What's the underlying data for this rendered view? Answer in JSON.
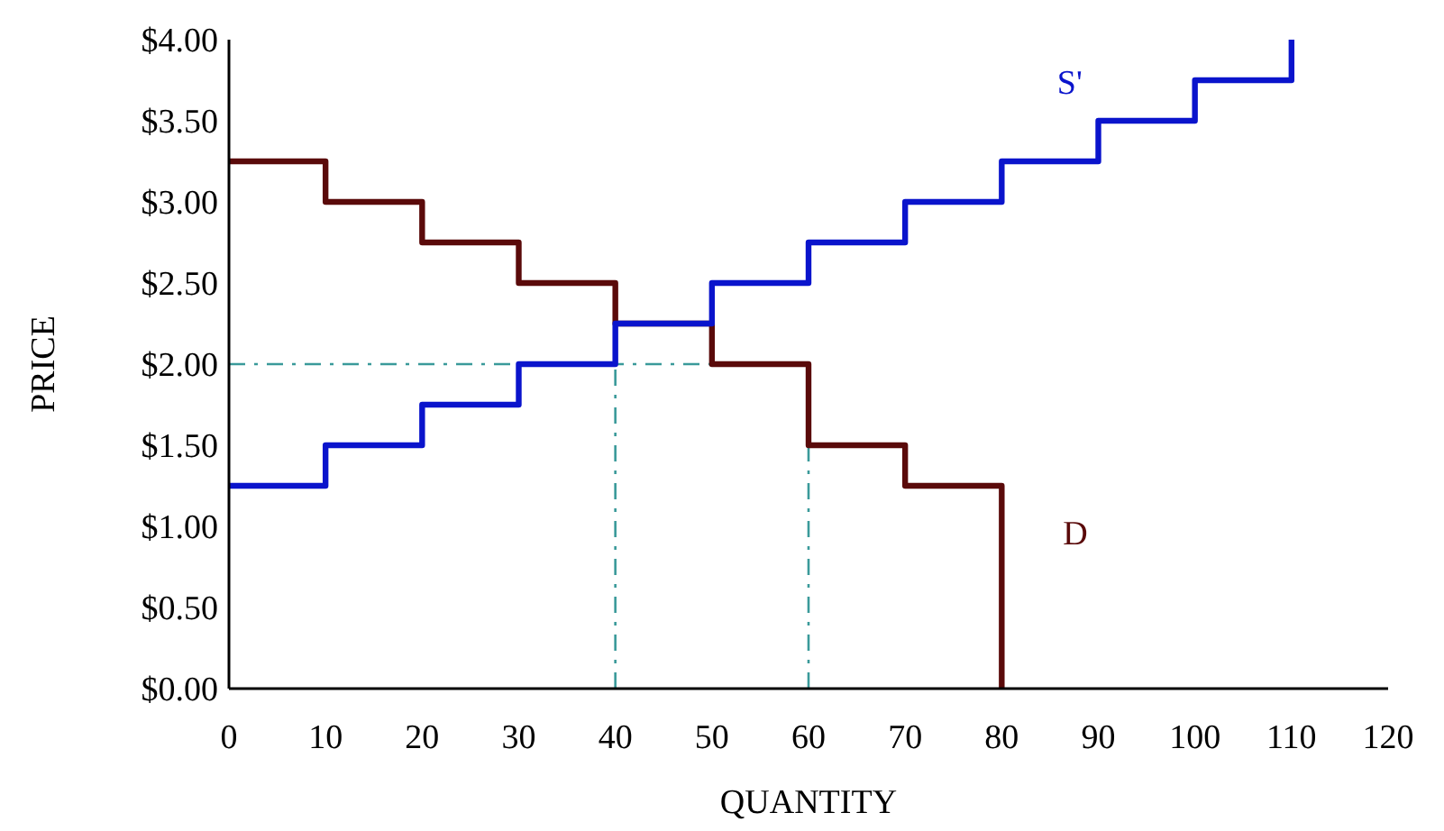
{
  "chart_data": {
    "type": "step",
    "xlabel": "QUANTITY",
    "ylabel": "PRICE",
    "xlim": [
      0,
      120
    ],
    "xticks": [
      0,
      10,
      20,
      30,
      40,
      50,
      60,
      70,
      80,
      90,
      100,
      110,
      120
    ],
    "ylim": [
      0,
      4
    ],
    "yticks": [
      {
        "value": 0,
        "label": "$0.00"
      },
      {
        "value": 0.5,
        "label": "$0.50"
      },
      {
        "value": 1,
        "label": "$1.00"
      },
      {
        "value": 1.5,
        "label": "$1.50"
      },
      {
        "value": 2,
        "label": "$2.00"
      },
      {
        "value": 2.5,
        "label": "$2.50"
      },
      {
        "value": 3,
        "label": "$3.00"
      },
      {
        "value": 3.5,
        "label": "$3.50"
      },
      {
        "value": 4,
        "label": "$4.00"
      }
    ],
    "grid": false,
    "series": [
      {
        "name": "D",
        "color": "#5a0a0a",
        "x": [
          0,
          10,
          20,
          30,
          40,
          50,
          60,
          70,
          80
        ],
        "values": [
          3.25,
          3.0,
          2.75,
          2.5,
          2.25,
          2.0,
          1.5,
          1.25,
          0
        ]
      },
      {
        "name": "S'",
        "color": "#0a14cc",
        "x": [
          0,
          10,
          20,
          30,
          40,
          50,
          60,
          70,
          80,
          90,
          100,
          110
        ],
        "values": [
          1.25,
          1.5,
          1.75,
          2.0,
          2.25,
          2.5,
          2.75,
          3.0,
          3.25,
          3.5,
          3.75,
          4.0
        ]
      }
    ],
    "ref_lines": [
      {
        "axis": "y",
        "value": 2,
        "color": "#3a9a9a",
        "line_style": "dashed"
      },
      {
        "axis": "x",
        "value": 40,
        "color": "#3a9a9a",
        "line_style": "dashed"
      },
      {
        "axis": "x",
        "value": 60,
        "color": "#3a9a9a",
        "line_style": "dashed"
      }
    ]
  }
}
